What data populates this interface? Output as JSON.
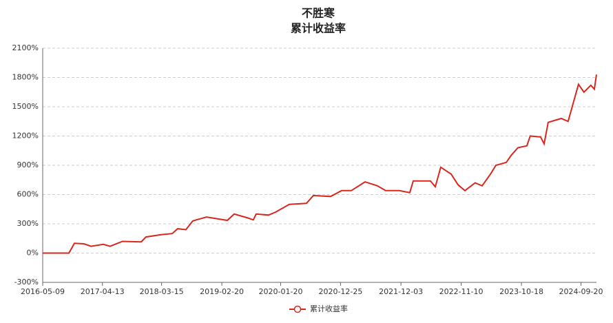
{
  "chart_data": {
    "type": "line",
    "title": "不胜寒",
    "subtitle": "累计收益率",
    "x": [
      "2016-05-09",
      "2016-10-05",
      "2016-11-05",
      "2016-12-29",
      "2017-02-07",
      "2017-04-18",
      "2017-05-27",
      "2017-08-05",
      "2017-11-19",
      "2017-12-16",
      "2018-03-16",
      "2018-05-14",
      "2018-06-14",
      "2018-07-31",
      "2018-09-08",
      "2018-11-25",
      "2019-03-23",
      "2019-05-01",
      "2019-07-18",
      "2019-08-18",
      "2019-09-03",
      "2019-11-12",
      "2019-12-22",
      "2020-03-09",
      "2020-06-14",
      "2020-07-24",
      "2020-10-29",
      "2020-12-31",
      "2021-02-24",
      "2021-05-13",
      "2021-07-22",
      "2021-09-07",
      "2021-11-24",
      "2022-01-22",
      "2022-02-11",
      "2022-05-19",
      "2022-06-16",
      "2022-07-17",
      "2022-09-14",
      "2022-10-23",
      "2022-12-01",
      "2023-01-28",
      "2023-03-09",
      "2023-04-25",
      "2023-05-26",
      "2023-07-24",
      "2023-08-20",
      "2023-09-28",
      "2023-11-18",
      "2023-12-07",
      "2024-02-04",
      "2024-02-24",
      "2024-03-18",
      "2024-05-31",
      "2024-07-09",
      "2024-09-06",
      "2024-10-07",
      "2024-11-15",
      "2024-12-05",
      "2024-12-17"
    ],
    "series": [
      {
        "name": "累计收益率",
        "color": "#d9261c",
        "values": [
          0,
          0,
          100,
          95,
          70,
          90,
          70,
          120,
          115,
          165,
          190,
          200,
          250,
          240,
          330,
          370,
          335,
          400,
          360,
          340,
          400,
          390,
          420,
          500,
          510,
          590,
          580,
          640,
          640,
          730,
          690,
          640,
          640,
          620,
          740,
          740,
          680,
          880,
          810,
          700,
          640,
          720,
          690,
          810,
          900,
          930,
          1000,
          1080,
          1100,
          1200,
          1190,
          1120,
          1340,
          1380,
          1350,
          1730,
          1650,
          1720,
          1680,
          1830
        ]
      }
    ],
    "xlim": [
      "2016-05-09",
      "2024-12-17"
    ],
    "xticks": [
      "2016-05-09",
      "2017-04-13",
      "2018-03-15",
      "2019-02-20",
      "2020-01-20",
      "2020-12-25",
      "2021-12-03",
      "2022-11-10",
      "2023-10-18",
      "2024-09-20"
    ],
    "ylim": [
      -300,
      2100
    ],
    "yticks": [
      {
        "value": -300,
        "label": "-300%"
      },
      {
        "value": 0,
        "label": "0%"
      },
      {
        "value": 300,
        "label": "300%"
      },
      {
        "value": 600,
        "label": "600%"
      },
      {
        "value": 900,
        "label": "900%"
      },
      {
        "value": 1200,
        "label": "1200%"
      },
      {
        "value": 1500,
        "label": "1500%"
      },
      {
        "value": 1800,
        "label": "1800%"
      },
      {
        "value": 2100,
        "label": "2100%"
      }
    ],
    "grid": true
  }
}
